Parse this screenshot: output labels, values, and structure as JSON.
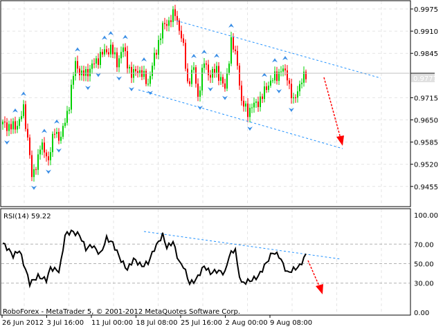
{
  "chart_data": [
    {
      "type": "candlestick",
      "symbol_pane": "price",
      "y_ticks": [
        "0.9975",
        "0.9910",
        "0.9845",
        "0.9715",
        "0.9650",
        "0.9585",
        "0.9520",
        "0.9455"
      ],
      "ylim": [
        0.9405,
        1.0
      ],
      "current_price": "0.9777",
      "price_path": [
        [
          0,
          0.9637
        ],
        [
          6,
          0.9627
        ],
        [
          10,
          0.9677
        ],
        [
          13,
          0.9556
        ],
        [
          14,
          0.9475
        ],
        [
          16,
          0.9515
        ],
        [
          18,
          0.9576
        ],
        [
          22,
          0.9536
        ],
        [
          25,
          0.9617
        ],
        [
          28,
          0.9596
        ],
        [
          32,
          0.9698
        ],
        [
          35,
          0.9819
        ],
        [
          38,
          0.9779
        ],
        [
          42,
          0.9799
        ],
        [
          47,
          0.9839
        ],
        [
          52,
          0.986
        ],
        [
          55,
          0.9819
        ],
        [
          58,
          0.986
        ],
        [
          62,
          0.9779
        ],
        [
          65,
          0.9799
        ],
        [
          70,
          0.9758
        ],
        [
          75,
          0.988
        ],
        [
          77,
          0.992
        ],
        [
          80,
          0.9941
        ],
        [
          83,
          0.9961
        ],
        [
          85,
          0.992
        ],
        [
          87,
          0.986
        ],
        [
          89,
          0.9758
        ],
        [
          92,
          0.9799
        ],
        [
          94,
          0.9718
        ],
        [
          97,
          0.9819
        ],
        [
          100,
          0.9779
        ],
        [
          103,
          0.9799
        ],
        [
          107,
          0.9738
        ],
        [
          110,
          0.988
        ],
        [
          113,
          0.9819
        ],
        [
          115,
          0.9698
        ],
        [
          118,
          0.9677
        ],
        [
          122,
          0.9698
        ],
        [
          125,
          0.9718
        ],
        [
          128,
          0.9758
        ],
        [
          132,
          0.9779
        ],
        [
          134,
          0.9799
        ],
        [
          137,
          0.9779
        ],
        [
          140,
          0.9698
        ],
        [
          143,
          0.9758
        ],
        [
          146,
          0.9779
        ]
      ],
      "trendlines": "descending channel",
      "forecast": "down"
    },
    {
      "type": "line",
      "title": "RSI(14) 59.22",
      "y_ticks": [
        "100.00",
        "70.00",
        "50.00",
        "30.00",
        "0.00"
      ],
      "ylim": [
        0,
        100
      ],
      "levels": [
        70,
        50,
        30
      ],
      "rsi_path": [
        [
          0,
          70.9
        ],
        [
          3,
          63.8
        ],
        [
          5,
          58
        ],
        [
          8,
          63.8
        ],
        [
          12,
          36.9
        ],
        [
          13,
          29.8
        ],
        [
          17,
          36.9
        ],
        [
          21,
          33.3
        ],
        [
          23,
          45.4
        ],
        [
          27,
          42.6
        ],
        [
          28,
          51
        ],
        [
          30,
          79.4
        ],
        [
          33,
          83
        ],
        [
          37,
          79.4
        ],
        [
          40,
          65.2
        ],
        [
          43,
          68.8
        ],
        [
          47,
          59.6
        ],
        [
          50,
          75.9
        ],
        [
          53,
          70.9
        ],
        [
          57,
          53.2
        ],
        [
          60,
          44
        ],
        [
          63,
          54.6
        ],
        [
          67,
          47.5
        ],
        [
          70,
          51
        ],
        [
          73,
          65.2
        ],
        [
          77,
          79.4
        ],
        [
          79,
          66.7
        ],
        [
          82,
          72.3
        ],
        [
          85,
          51
        ],
        [
          87,
          47.5
        ],
        [
          90,
          29.8
        ],
        [
          93,
          33.3
        ],
        [
          97,
          47.5
        ],
        [
          100,
          40.4
        ],
        [
          103,
          42.6
        ],
        [
          107,
          40.4
        ],
        [
          109,
          58.2
        ],
        [
          112,
          65.2
        ],
        [
          113,
          47.5
        ],
        [
          115,
          29.8
        ],
        [
          120,
          33.3
        ],
        [
          123,
          36.9
        ],
        [
          127,
          51
        ],
        [
          130,
          61.7
        ],
        [
          133,
          58.2
        ],
        [
          137,
          40.4
        ],
        [
          140,
          44
        ],
        [
          143,
          47.5
        ],
        [
          146,
          59.22
        ]
      ],
      "forecast": "down"
    }
  ],
  "x_ticks": [
    "26 Jun 2012",
    "3 Jul 16:00",
    "11 Jul 00:00",
    "18 Jul 08:00",
    "25 Jul 16:00",
    "2 Aug 00:00",
    "9 Aug 08:00"
  ],
  "copyright": "RoboForex - MetaTrader 5, © 2001-2012 MetaQuotes Software Corp.",
  "colors": {
    "up": "#00d000",
    "down": "#ff0000",
    "fractal": "#3a8ee6",
    "trend": "#1e90ff",
    "arrow": "#ff0000",
    "rsi": "#000000"
  }
}
